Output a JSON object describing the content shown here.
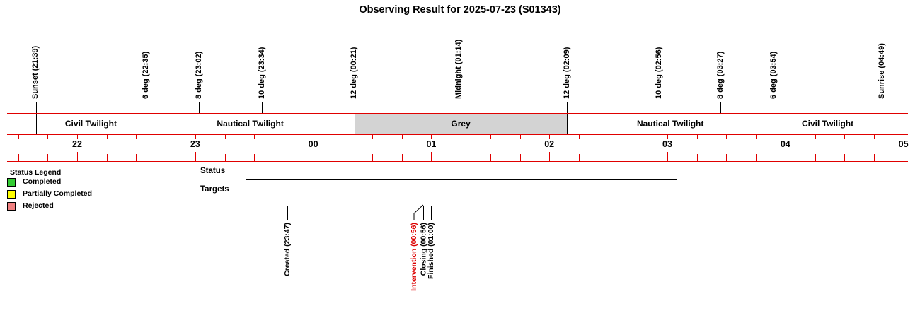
{
  "chart_data": {
    "type": "timeline",
    "title": "Observing Result for 2025-07-23 (S01343)",
    "time_axis": {
      "start": "21:30",
      "end": "05:00",
      "tick_interval_minutes": 15,
      "hour_labels": [
        "22",
        "23",
        "00",
        "01",
        "02",
        "03",
        "04",
        "05"
      ]
    },
    "sun_markers": [
      {
        "label": "Sunset (21:39)",
        "time": "21:39"
      },
      {
        "label": "6 deg (22:35)",
        "time": "22:35"
      },
      {
        "label": "8 deg (23:02)",
        "time": "23:02"
      },
      {
        "label": "10 deg (23:34)",
        "time": "23:34"
      },
      {
        "label": "12 deg (00:21)",
        "time": "00:21"
      },
      {
        "label": "Midnight (01:14)",
        "time": "01:14"
      },
      {
        "label": "12 deg (02:09)",
        "time": "02:09"
      },
      {
        "label": "10 deg (02:56)",
        "time": "02:56"
      },
      {
        "label": "8 deg (03:27)",
        "time": "03:27"
      },
      {
        "label": "6 deg (03:54)",
        "time": "03:54"
      },
      {
        "label": "Sunrise (04:49)",
        "time": "04:49"
      }
    ],
    "twilight_sections": [
      {
        "label": "Civil Twilight",
        "start": "21:39",
        "end": "22:35",
        "fill": "#ffffff"
      },
      {
        "label": "Nautical Twilight",
        "start": "22:35",
        "end": "00:21",
        "fill": "#ffffff"
      },
      {
        "label": "Grey",
        "start": "00:21",
        "end": "02:09",
        "fill": "#d3d3d3"
      },
      {
        "label": "Nautical Twilight",
        "start": "02:09",
        "end": "03:54",
        "fill": "#ffffff"
      },
      {
        "label": "Civil Twilight",
        "start": "03:54",
        "end": "04:49",
        "fill": "#ffffff"
      }
    ],
    "rows": [
      {
        "label": "Status"
      },
      {
        "label": "Targets"
      }
    ],
    "events": [
      {
        "label": "Created (23:47)",
        "time": "23:47",
        "color": "black",
        "offset_label": false
      },
      {
        "label": "Intervention (00:56)",
        "time": "00:56",
        "color": "red",
        "offset_label": true
      },
      {
        "label": "Closing (00:56)",
        "time": "00:56",
        "color": "black",
        "offset_label": false
      },
      {
        "label": "Finished (01:00)",
        "time": "01:00",
        "color": "black",
        "offset_label": false
      }
    ],
    "legend": {
      "title": "Status Legend",
      "items": [
        {
          "label": "Completed",
          "color": "#33cc33"
        },
        {
          "label": "Partially Completed",
          "color": "#ffff00"
        },
        {
          "label": "Rejected",
          "color": "#f08080"
        }
      ]
    }
  },
  "colors": {
    "ruler_red": "#e00000",
    "grey_fill": "#d3d3d3",
    "event_red": "#dd0000",
    "line_black": "#000000"
  }
}
